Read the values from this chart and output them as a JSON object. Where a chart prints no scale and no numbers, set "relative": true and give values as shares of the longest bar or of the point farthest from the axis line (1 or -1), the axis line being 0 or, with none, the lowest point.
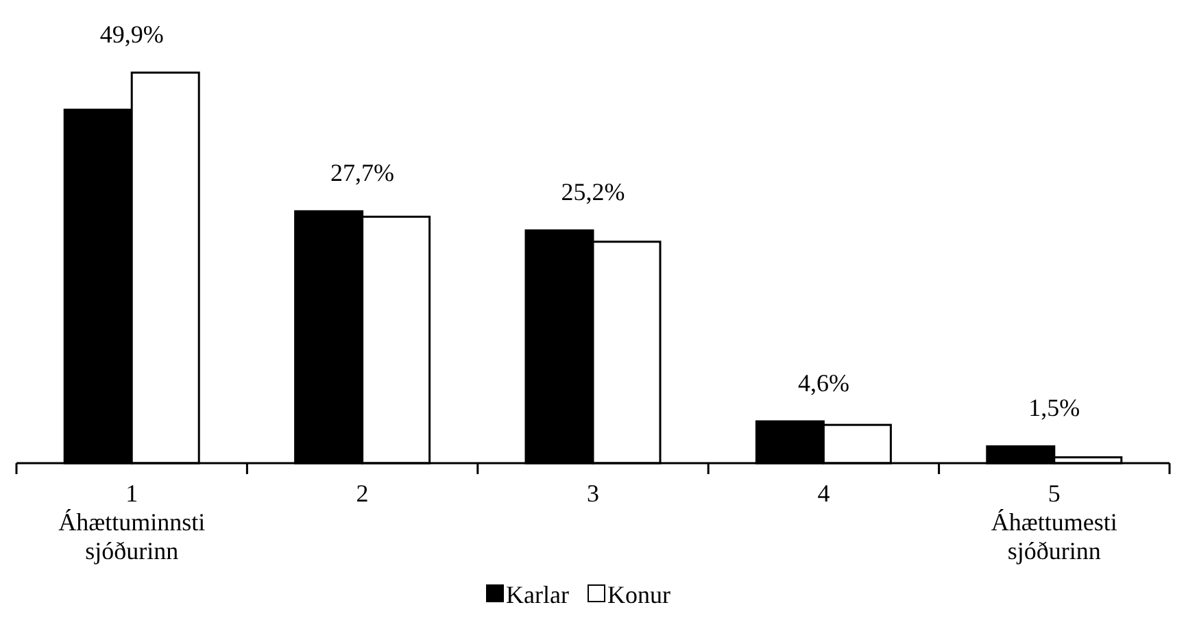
{
  "chart_data": {
    "type": "bar",
    "relative": true,
    "categories": [
      "1\nÁhættuminnsti\nsjóðurinn",
      "2",
      "3",
      "4",
      "5\nÁhættumesti\nsjóðurinn"
    ],
    "series": [
      {
        "name": "Karlar",
        "color": "#000000",
        "values": [
          0.905,
          0.645,
          0.596,
          0.107,
          0.043
        ]
      },
      {
        "name": "Konur",
        "color": "#ffffff",
        "values": [
          1,
          0.631,
          0.567,
          0.098,
          0.015
        ]
      }
    ],
    "annotations": [
      "49,9%",
      "27,7%",
      "25,2%",
      "4,6%",
      "1,5%"
    ],
    "legend": "bottom"
  }
}
